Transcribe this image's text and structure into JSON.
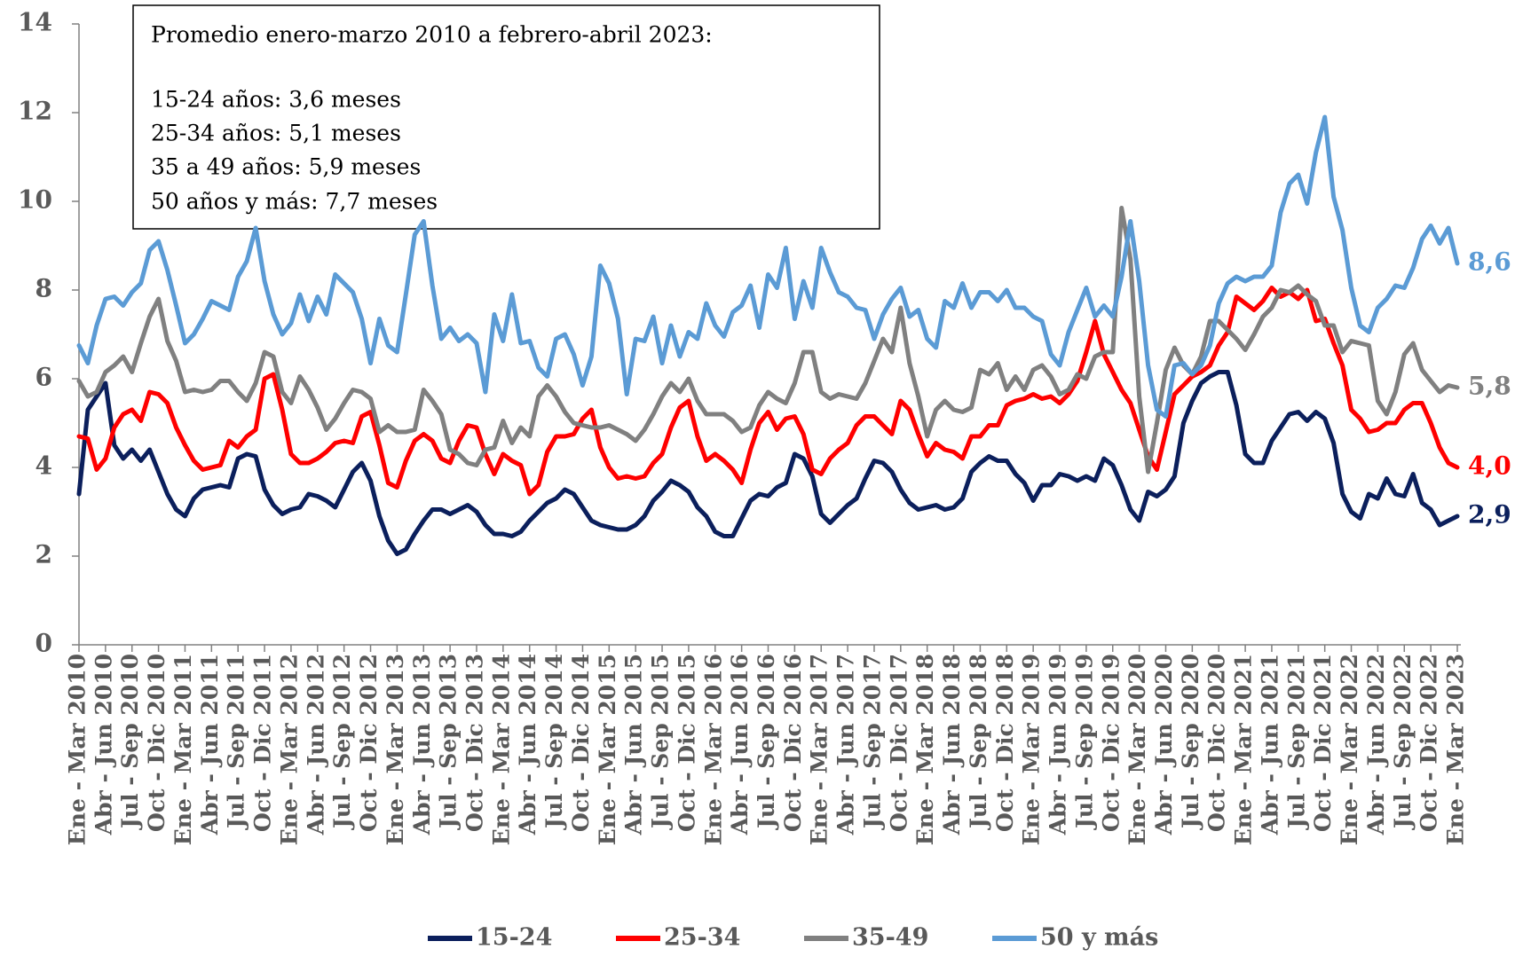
{
  "chart_data": {
    "type": "line",
    "annotation": {
      "lines": [
        "Promedio enero-marzo 2010 a febrero-abril 2023:",
        "15-24 años: 3,6 meses",
        "25-34 años: 5,1 meses",
        "35 a 49 años: 5,9 meses",
        "50 años y más: 7,7 meses"
      ]
    },
    "categories": [
      "Ene - Mar 2010",
      null,
      null,
      "Abr - Jun 2010",
      null,
      null,
      "Jul - Sep 2010",
      null,
      null,
      "Oct - Dic 2010",
      null,
      null,
      "Ene - Mar 2011",
      null,
      null,
      "Abr - Jun 2011",
      null,
      null,
      "Jul - Sep 2011",
      null,
      null,
      "Oct - Dic 2011",
      null,
      null,
      "Ene - Mar 2012",
      null,
      null,
      "Abr - Jun 2012",
      null,
      null,
      "Jul - Sep 2012",
      null,
      null,
      "Oct - Dic 2012",
      null,
      null,
      "Ene - Mar 2013",
      null,
      null,
      "Abr - Jun 2013",
      null,
      null,
      "Jul - Sep 2013",
      null,
      null,
      "Oct - Dic 2013",
      null,
      null,
      "Ene - Mar 2014",
      null,
      null,
      "Abr - Jun 2014",
      null,
      null,
      "Jul - Sep 2014",
      null,
      null,
      "Oct - Dic 2014",
      null,
      null,
      "Ene - Mar 2015",
      null,
      null,
      "Abr - Jun 2015",
      null,
      null,
      "Jul - Sep 2015",
      null,
      null,
      "Oct - Dic 2015",
      null,
      null,
      "Ene - Mar 2016",
      null,
      null,
      "Abr - Jun 2016",
      null,
      null,
      "Jul - Sep 2016",
      null,
      null,
      "Oct - Dic 2016",
      null,
      null,
      "Ene - Mar 2017",
      null,
      null,
      "Abr - Jun 2017",
      null,
      null,
      "Jul - Sep 2017",
      null,
      null,
      "Oct - Dic 2017",
      null,
      null,
      "Ene - Mar 2018",
      null,
      null,
      "Abr - Jun 2018",
      null,
      null,
      "Jul - Sep 2018",
      null,
      null,
      "Oct - Dic 2018",
      null,
      null,
      "Ene - Mar 2019",
      null,
      null,
      "Abr - Jun 2019",
      null,
      null,
      "Jul - Sep 2019",
      null,
      null,
      "Oct - Dic 2019",
      null,
      null,
      "Ene - Mar 2020",
      null,
      null,
      "Abr - Jun 2020",
      null,
      null,
      "Jul - Sep 2020",
      null,
      null,
      "Oct - Dic 2020",
      null,
      null,
      "Ene - Mar 2021",
      null,
      null,
      "Abr - Jun 2021",
      null,
      null,
      "Jul - Sep 2021",
      null,
      null,
      "Oct - Dic 2021",
      null,
      null,
      "Ene - Mar 2022",
      null,
      null,
      "Abr - Jun 2022",
      null,
      null,
      "Jul - Sep 2022",
      null,
      null,
      "Oct - Dic 2022",
      null,
      null,
      "Ene - Mar 2023"
    ],
    "series": [
      {
        "name": "15-24",
        "color": "#0b1f5c",
        "end_label": "2,9",
        "values": [
          3.4,
          5.3,
          5.6,
          5.9,
          4.5,
          4.2,
          4.4,
          4.15,
          4.4,
          3.9,
          3.4,
          3.05,
          2.9,
          3.3,
          3.5,
          3.55,
          3.6,
          3.55,
          4.2,
          4.3,
          4.25,
          3.5,
          3.15,
          2.95,
          3.05,
          3.1,
          3.4,
          3.35,
          3.25,
          3.1,
          3.5,
          3.9,
          4.1,
          3.7,
          2.9,
          2.35,
          2.05,
          2.15,
          2.5,
          2.8,
          3.05,
          3.05,
          2.95,
          3.05,
          3.15,
          3.0,
          2.7,
          2.5,
          2.5,
          2.45,
          2.55,
          2.8,
          3.0,
          3.2,
          3.3,
          3.5,
          3.4,
          3.1,
          2.8,
          2.7,
          2.65,
          2.6,
          2.6,
          2.7,
          2.9,
          3.25,
          3.45,
          3.7,
          3.6,
          3.45,
          3.1,
          2.9,
          2.55,
          2.45,
          2.45,
          2.85,
          3.25,
          3.4,
          3.35,
          3.55,
          3.65,
          4.3,
          4.2,
          3.8,
          2.95,
          2.75,
          2.95,
          3.15,
          3.3,
          3.75,
          4.15,
          4.1,
          3.9,
          3.5,
          3.2,
          3.05,
          3.1,
          3.15,
          3.05,
          3.1,
          3.3,
          3.9,
          4.1,
          4.25,
          4.15,
          4.15,
          3.85,
          3.65,
          3.25,
          3.6,
          3.6,
          3.85,
          3.8,
          3.7,
          3.8,
          3.7,
          4.2,
          4.05,
          3.6,
          3.05,
          2.8,
          3.45,
          3.35,
          3.5,
          3.8,
          5.0,
          5.5,
          5.9,
          6.05,
          6.15,
          6.15,
          5.4,
          4.3,
          4.1,
          4.1,
          4.6,
          4.9,
          5.2,
          5.25,
          5.05,
          5.25,
          5.1,
          4.55,
          3.4,
          3.0,
          2.85,
          3.4,
          3.3,
          3.75,
          3.4,
          3.35,
          3.85,
          3.2,
          3.05,
          2.7,
          2.8,
          2.9
        ]
      },
      {
        "name": "25-34",
        "color": "#ff0000",
        "end_label": "4,0",
        "values": [
          4.7,
          4.65,
          3.95,
          4.2,
          4.9,
          5.2,
          5.3,
          5.05,
          5.7,
          5.65,
          5.45,
          4.9,
          4.5,
          4.15,
          3.95,
          4.0,
          4.05,
          4.6,
          4.45,
          4.7,
          4.85,
          6.0,
          6.1,
          5.3,
          4.3,
          4.1,
          4.1,
          4.2,
          4.35,
          4.55,
          4.6,
          4.55,
          5.15,
          5.25,
          4.5,
          3.65,
          3.55,
          4.15,
          4.6,
          4.75,
          4.6,
          4.2,
          4.1,
          4.6,
          4.95,
          4.9,
          4.3,
          3.85,
          4.3,
          4.15,
          4.05,
          3.4,
          3.6,
          4.35,
          4.7,
          4.7,
          4.75,
          5.1,
          5.3,
          4.45,
          4.0,
          3.75,
          3.8,
          3.75,
          3.8,
          4.1,
          4.3,
          4.9,
          5.35,
          5.5,
          4.7,
          4.15,
          4.3,
          4.15,
          3.95,
          3.65,
          4.4,
          5.0,
          5.25,
          4.85,
          5.1,
          5.15,
          4.75,
          3.95,
          3.85,
          4.2,
          4.4,
          4.55,
          4.95,
          5.15,
          5.15,
          4.95,
          4.75,
          5.5,
          5.3,
          4.75,
          4.25,
          4.55,
          4.4,
          4.35,
          4.2,
          4.7,
          4.7,
          4.95,
          4.95,
          5.4,
          5.5,
          5.55,
          5.65,
          5.55,
          5.6,
          5.45,
          5.65,
          5.95,
          6.6,
          7.3,
          6.55,
          6.15,
          5.75,
          5.45,
          4.85,
          4.25,
          3.95,
          4.8,
          5.65,
          5.85,
          6.05,
          6.15,
          6.3,
          6.75,
          7.05,
          7.85,
          7.7,
          7.55,
          7.75,
          8.05,
          7.85,
          7.95,
          7.8,
          8.0,
          7.3,
          7.35,
          6.8,
          6.3,
          5.3,
          5.1,
          4.8,
          4.85,
          5.0,
          5.0,
          5.3,
          5.45,
          5.45,
          5.0,
          4.45,
          4.1,
          4.0
        ]
      },
      {
        "name": "35-49",
        "color": "#808080",
        "end_label": "5,8",
        "values": [
          5.95,
          5.6,
          5.7,
          6.15,
          6.3,
          6.5,
          6.15,
          6.8,
          7.4,
          7.8,
          6.85,
          6.4,
          5.7,
          5.75,
          5.7,
          5.75,
          5.95,
          5.95,
          5.7,
          5.5,
          5.9,
          6.6,
          6.5,
          5.7,
          5.45,
          6.05,
          5.75,
          5.35,
          4.85,
          5.1,
          5.45,
          5.75,
          5.7,
          5.55,
          4.8,
          4.95,
          4.8,
          4.8,
          4.85,
          5.75,
          5.5,
          5.2,
          4.4,
          4.3,
          4.1,
          4.05,
          4.4,
          4.45,
          5.05,
          4.55,
          4.9,
          4.7,
          5.6,
          5.85,
          5.6,
          5.25,
          5.0,
          4.95,
          4.9,
          4.9,
          4.95,
          4.85,
          4.75,
          4.6,
          4.85,
          5.2,
          5.6,
          5.9,
          5.7,
          6.0,
          5.5,
          5.2,
          5.2,
          5.2,
          5.05,
          4.8,
          4.9,
          5.4,
          5.7,
          5.55,
          5.45,
          5.9,
          6.6,
          6.6,
          5.7,
          5.55,
          5.65,
          5.6,
          5.55,
          5.9,
          6.4,
          6.9,
          6.6,
          7.6,
          6.35,
          5.6,
          4.7,
          5.3,
          5.5,
          5.3,
          5.25,
          5.35,
          6.2,
          6.1,
          6.35,
          5.75,
          6.05,
          5.75,
          6.2,
          6.3,
          6.05,
          5.65,
          5.75,
          6.1,
          6.0,
          6.5,
          6.6,
          6.6,
          9.85,
          8.7,
          5.6,
          3.9,
          5.0,
          6.2,
          6.7,
          6.3,
          6.1,
          6.5,
          7.3,
          7.3,
          7.1,
          6.9,
          6.65,
          7.0,
          7.4,
          7.6,
          8.0,
          7.95,
          8.1,
          7.9,
          7.75,
          7.2,
          7.2,
          6.6,
          6.85,
          6.8,
          6.75,
          5.5,
          5.2,
          5.7,
          6.55,
          6.8,
          6.2,
          5.95,
          5.7,
          5.85,
          5.8
        ]
      },
      {
        "name": "50 y más",
        "color": "#5b9bd5",
        "end_label": "8,6",
        "values": [
          6.75,
          6.35,
          7.2,
          7.8,
          7.85,
          7.65,
          7.95,
          8.15,
          8.9,
          9.1,
          8.45,
          7.65,
          6.8,
          7.0,
          7.35,
          7.75,
          7.65,
          7.55,
          8.3,
          8.65,
          9.4,
          8.2,
          7.45,
          7.0,
          7.25,
          7.9,
          7.3,
          7.85,
          7.45,
          8.35,
          8.15,
          7.95,
          7.35,
          6.35,
          7.35,
          6.75,
          6.6,
          7.9,
          9.25,
          9.55,
          8.1,
          6.9,
          7.15,
          6.85,
          7.0,
          6.8,
          5.7,
          7.45,
          6.85,
          7.9,
          6.8,
          6.85,
          6.25,
          6.05,
          6.9,
          7.0,
          6.55,
          5.85,
          6.5,
          8.55,
          8.15,
          7.35,
          5.65,
          6.9,
          6.85,
          7.4,
          6.35,
          7.2,
          6.5,
          7.05,
          6.9,
          7.7,
          7.2,
          6.95,
          7.5,
          7.65,
          8.1,
          7.15,
          8.35,
          8.05,
          8.95,
          7.35,
          8.2,
          7.6,
          8.95,
          8.4,
          7.95,
          7.85,
          7.6,
          7.55,
          6.9,
          7.45,
          7.8,
          8.05,
          7.4,
          7.55,
          6.9,
          6.7,
          7.75,
          7.6,
          8.15,
          7.6,
          7.95,
          7.95,
          7.75,
          8.0,
          7.6,
          7.6,
          7.4,
          7.3,
          6.55,
          6.3,
          7.05,
          7.55,
          8.05,
          7.4,
          7.65,
          7.4,
          8.3,
          9.55,
          8.2,
          6.3,
          5.3,
          5.15,
          6.3,
          6.35,
          6.1,
          6.3,
          6.75,
          7.7,
          8.15,
          8.3,
          8.2,
          8.3,
          8.3,
          8.55,
          9.75,
          10.4,
          10.6,
          9.95,
          11.1,
          11.9,
          10.1,
          9.35,
          8.05,
          7.2,
          7.05,
          7.6,
          7.8,
          8.1,
          8.05,
          8.5,
          9.15,
          9.45,
          9.05,
          9.4,
          8.6
        ]
      }
    ],
    "ylim": [
      0,
      14
    ],
    "yticks": [
      0,
      2,
      4,
      6,
      8,
      10,
      12,
      14
    ],
    "grid": false,
    "legend": "bottom"
  }
}
